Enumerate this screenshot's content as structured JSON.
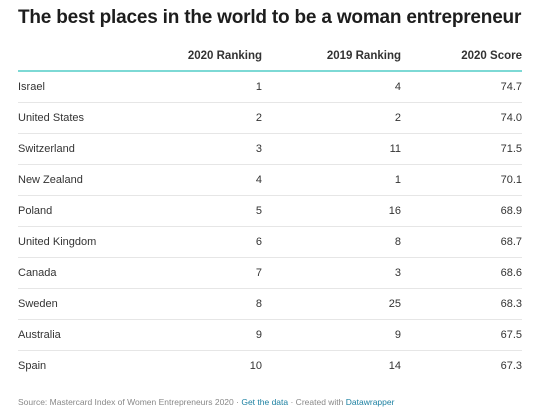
{
  "header": {
    "title": "The best places in the world to be a woman entrepreneur"
  },
  "footer": {
    "source": "Source: Mastercard Index of Women Entrepreneurs 2020 · ",
    "get_data": "Get the data",
    "created_with": " · Created with ",
    "datawrapper": "Datawrapper"
  },
  "chart_data": {
    "type": "table",
    "title": "The best places in the world to be a woman entrepreneur",
    "columns": [
      "",
      "2020 Ranking",
      "2019 Ranking",
      "2020 Score"
    ],
    "rows": [
      {
        "country": "Israel",
        "rank_2020": "1",
        "rank_2019": "4",
        "score_2020": "74.7"
      },
      {
        "country": "United States",
        "rank_2020": "2",
        "rank_2019": "2",
        "score_2020": "74.0"
      },
      {
        "country": "Switzerland",
        "rank_2020": "3",
        "rank_2019": "11",
        "score_2020": "71.5"
      },
      {
        "country": "New Zealand",
        "rank_2020": "4",
        "rank_2019": "1",
        "score_2020": "70.1"
      },
      {
        "country": "Poland",
        "rank_2020": "5",
        "rank_2019": "16",
        "score_2020": "68.9"
      },
      {
        "country": "United Kingdom",
        "rank_2020": "6",
        "rank_2019": "8",
        "score_2020": "68.7"
      },
      {
        "country": "Canada",
        "rank_2020": "7",
        "rank_2019": "3",
        "score_2020": "68.6"
      },
      {
        "country": "Sweden",
        "rank_2020": "8",
        "rank_2019": "25",
        "score_2020": "68.3"
      },
      {
        "country": "Australia",
        "rank_2020": "9",
        "rank_2019": "9",
        "score_2020": "67.5"
      },
      {
        "country": "Spain",
        "rank_2020": "10",
        "rank_2019": "14",
        "score_2020": "67.3"
      }
    ],
    "header_rule_color": "#7dd9d5",
    "link_color": "#1d81a2"
  }
}
